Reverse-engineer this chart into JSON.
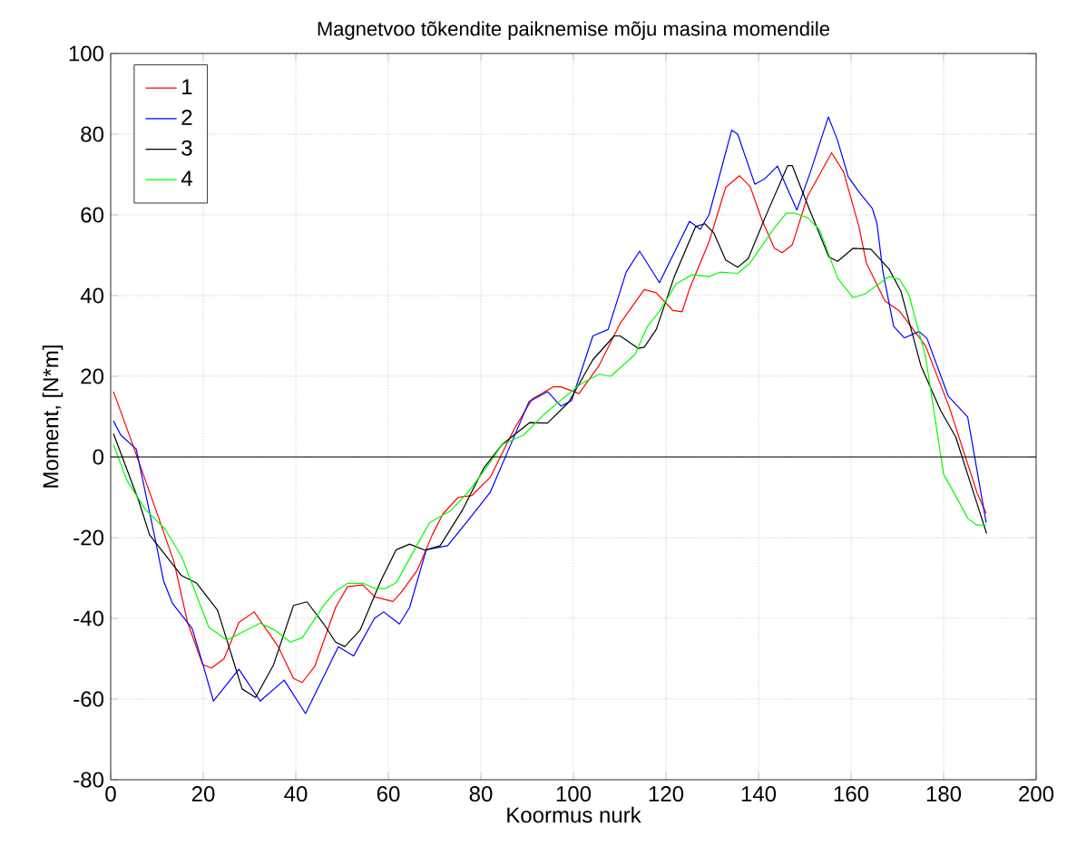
{
  "chart_data": {
    "type": "line",
    "title": "Magnetvoo tõkendite paiknemise mõju masina momendile",
    "xlabel": "Koormus nurk",
    "ylabel": "Moment, [N*m]",
    "xlim": [
      0,
      200
    ],
    "ylim": [
      -80,
      100
    ],
    "xticks": [
      0,
      20,
      40,
      60,
      80,
      100,
      120,
      140,
      160,
      180,
      200
    ],
    "yticks": [
      -80,
      -60,
      -40,
      -20,
      0,
      20,
      40,
      60,
      80,
      100
    ],
    "grid": true,
    "legend": "top left",
    "ref_lines": [
      {
        "axis": "y",
        "value": 0
      }
    ],
    "series": [
      {
        "name": "1",
        "color": "#ff0000",
        "x": [
          0.6,
          4.5,
          10.4,
          13.7,
          16.6,
          19.9,
          21.8,
          24.5,
          27.7,
          31,
          36.2,
          39.5,
          41.4,
          44.1,
          48.6,
          51.2,
          54.5,
          57.1,
          61,
          62.7,
          66.3,
          69.5,
          71.8,
          75.1,
          78,
          82,
          87.2,
          91.1,
          95.7,
          97.3,
          101.2,
          105.5,
          110.1,
          115.3,
          117.9,
          121.5,
          123.5,
          125.1,
          129.3,
          132.9,
          135.9,
          138.2,
          140.8,
          143.4,
          145.1,
          147.3,
          150.6,
          155.8,
          158.4,
          161.7,
          163.3,
          167.3,
          170.5,
          176.1,
          181.3,
          187.2,
          189.2
        ],
        "values": [
          16.2,
          3.9,
          -15.2,
          -26.1,
          -41,
          -51.5,
          -52.3,
          -50,
          -41,
          -38.4,
          -47,
          -54.9,
          -55.9,
          -51.9,
          -37.3,
          -32.1,
          -31.7,
          -34.7,
          -35.8,
          -33.7,
          -28,
          -19.3,
          -14.1,
          -10,
          -9.6,
          -5.1,
          6.9,
          14.4,
          17.4,
          17.4,
          15.7,
          22.6,
          33.1,
          41.5,
          40.7,
          36.3,
          36,
          41.7,
          53.3,
          66.8,
          69.7,
          67,
          58.6,
          51.8,
          50.6,
          52.6,
          64.6,
          75.4,
          70.6,
          57.1,
          48.1,
          38.7,
          36.1,
          27.5,
          12.1,
          -8.8,
          -14
        ]
      },
      {
        "name": "2",
        "color": "#0000ff",
        "x": [
          0.6,
          2.2,
          5.5,
          9.7,
          11.4,
          13.3,
          17.6,
          20,
          22.2,
          27.7,
          32.3,
          37.5,
          42.1,
          49.2,
          52.5,
          57,
          59,
          62.4,
          64.6,
          68.2,
          72.8,
          77.4,
          82,
          85.9,
          90.4,
          94.4,
          97.3,
          99.6,
          104.2,
          107.5,
          111.4,
          114.3,
          118.6,
          125.1,
          127.4,
          129.3,
          134.2,
          135.5,
          139.2,
          141.4,
          144.1,
          148.3,
          151.2,
          155.1,
          157.1,
          159.4,
          161.7,
          164.6,
          165.6,
          166.9,
          169.2,
          171.5,
          174.7,
          176.4,
          181,
          185.2,
          189.2
        ],
        "values": [
          8.9,
          5.4,
          2,
          -20.8,
          -30.6,
          -36.2,
          -42.5,
          -51.7,
          -60.5,
          -52.6,
          -60.5,
          -55.3,
          -63.6,
          -47,
          -49.3,
          -40,
          -38.4,
          -41.4,
          -37.3,
          -23,
          -22,
          -15.5,
          -8.8,
          1.6,
          13.7,
          16.2,
          12.6,
          14,
          30,
          31.6,
          45.8,
          51,
          43.2,
          58.4,
          56.4,
          60,
          81,
          80,
          67.6,
          69,
          72.1,
          61.2,
          70.6,
          84.3,
          78.4,
          69.4,
          65.7,
          61.6,
          57.8,
          45.8,
          32.4,
          29.5,
          31.1,
          29.4,
          15.1,
          9.9,
          -16.3
        ]
      },
      {
        "name": "3",
        "color": "#000000",
        "x": [
          0.6,
          6.1,
          8.4,
          15.3,
          18.6,
          23.1,
          28.4,
          31.3,
          35.2,
          39.5,
          42.4,
          46,
          48.6,
          50.6,
          53.9,
          58.4,
          61.7,
          64.6,
          67.9,
          71.2,
          76.1,
          80.6,
          84.6,
          90.5,
          94.4,
          99,
          104.2,
          108.8,
          110.1,
          114,
          115.3,
          117.9,
          121.8,
          126.4,
          128.4,
          130.3,
          132.9,
          135.5,
          137.8,
          141.4,
          146.3,
          147.3,
          151.2,
          155.2,
          157.1,
          160.4,
          164.3,
          168.2,
          170.8,
          175.1,
          179.4,
          182.6,
          187.2,
          189.3
        ],
        "values": [
          5.8,
          -11,
          -19.3,
          -29.4,
          -31.3,
          -38,
          -57.5,
          -59.6,
          -51.5,
          -36.8,
          -35.9,
          -41.3,
          -45.9,
          -47,
          -42.9,
          -30.6,
          -23,
          -21.6,
          -23.1,
          -22,
          -13,
          -2.8,
          3.1,
          8.5,
          8.4,
          13.6,
          24.1,
          30,
          30,
          26.9,
          27.2,
          31.6,
          44.7,
          57.1,
          57.8,
          55.6,
          48.8,
          47,
          49.2,
          59.3,
          72.2,
          72.2,
          60.8,
          49.6,
          48.5,
          51.7,
          51.5,
          46.6,
          41,
          22.6,
          11.4,
          5,
          -11.5,
          -19
        ]
      },
      {
        "name": "4",
        "color": "#00ff00",
        "x": [
          0.6,
          3.5,
          7.5,
          11.7,
          15.3,
          21.2,
          25.1,
          28,
          32.3,
          35.5,
          38.8,
          41.4,
          46,
          48.3,
          51.2,
          54.5,
          57.1,
          59.4,
          61.7,
          66.3,
          68.9,
          73.5,
          77.4,
          82,
          84.6,
          89.2,
          93.7,
          97.6,
          101.6,
          105.5,
          108.1,
          113.3,
          116,
          118.6,
          122.2,
          125.7,
          129.3,
          131.6,
          135.5,
          138.2,
          143.4,
          146,
          147.9,
          150.6,
          153.2,
          157.1,
          160.4,
          163,
          168.2,
          170.5,
          172.5,
          176.1,
          180,
          183.3,
          185.2,
          187.2,
          189.2
        ],
        "values": [
          3.1,
          -5.8,
          -13,
          -17.8,
          -24.6,
          -42.2,
          -45.4,
          -43.7,
          -41.2,
          -42.9,
          -45.9,
          -44.8,
          -36.9,
          -33.6,
          -31.3,
          -31.3,
          -32.6,
          -32.6,
          -31.2,
          -21.6,
          -16.3,
          -13.3,
          -8.5,
          -1.3,
          3.1,
          5.4,
          10.6,
          14.4,
          18.1,
          20.5,
          20,
          25.4,
          32.4,
          36.1,
          42.9,
          45.2,
          44.7,
          45.8,
          45.5,
          48.1,
          56.7,
          60.4,
          60.4,
          59.3,
          56.3,
          44.3,
          39.5,
          40.4,
          44.7,
          44,
          40.2,
          24.9,
          -4.3,
          -11.1,
          -15.2,
          -16.9,
          -16.9
        ]
      }
    ]
  }
}
